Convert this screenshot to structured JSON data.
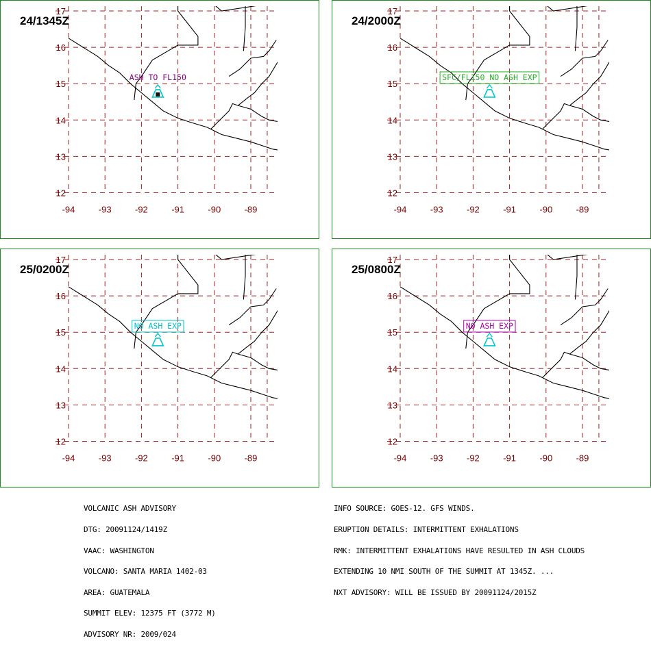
{
  "panels": [
    {
      "time": "24/1345Z",
      "label": "ASH TO FL150",
      "label_color": "#800080",
      "boxed": false,
      "volcano_color": "#00c8c8",
      "center_dot": true
    },
    {
      "time": "24/2000Z",
      "label": "SFC/FL150 NO ASH EXP",
      "label_color": "#22b022",
      "boxed": true,
      "volcano_color": "#00c8c8",
      "center_dot": false
    },
    {
      "time": "25/0200Z",
      "label": "NO ASH EXP",
      "label_color": "#00c0c8",
      "boxed": true,
      "volcano_color": "#00c8c8",
      "center_dot": false
    },
    {
      "time": "25/0800Z",
      "label": "NO ASH EXP",
      "label_color": "#b000b0",
      "boxed": true,
      "volcano_color": "#00c8c8",
      "center_dot": false
    }
  ],
  "map": {
    "lon_ticks": [
      "-94",
      "-93",
      "-92",
      "-91",
      "-90",
      "-89"
    ],
    "lat_ticks": [
      "17",
      "16",
      "15",
      "14",
      "13",
      "12"
    ],
    "volcano": {
      "lon": -91.55,
      "lat": 14.76
    },
    "colors": {
      "grid": "#a02020",
      "tick_text": "#7a0000",
      "frame": "#1d8a1d",
      "coast": "#000000"
    }
  },
  "advisory_left": [
    "VOLCANIC ASH ADVISORY",
    "DTG: 20091124/1419Z",
    "VAAC: WASHINGTON",
    "VOLCANO: SANTA MARIA 1402-03",
    "AREA: GUATEMALA",
    "SUMMIT ELEV: 12375 FT (3772 M)",
    "ADVISORY NR: 2009/024"
  ],
  "advisory_right": [
    "INFO SOURCE: GOES-12. GFS WINDS.",
    "ERUPTION DETAILS: INTERMITTENT EXHALATIONS",
    "RMK: INTERMITTENT EXHALATIONS HAVE RESULTED IN ASH CLOUDS",
    "EXTENDING 10 NMI SOUTH OF THE SUMMIT AT 1345Z. ...",
    "NXT ADVISORY: WILL BE ISSUED BY 20091124/2015Z"
  ]
}
